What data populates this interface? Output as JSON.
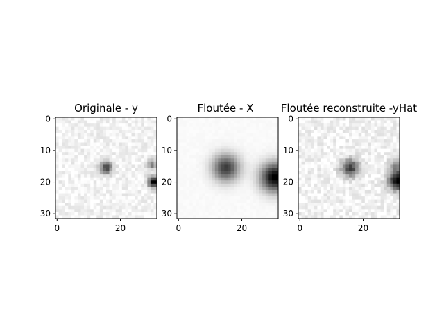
{
  "figure": {
    "background": "#ffffff",
    "colormap": "gray_r",
    "image_grid_size": 32,
    "panels": [
      {
        "id": "originale",
        "title": "Originale - y",
        "x_ticks": [
          0,
          20
        ],
        "y_ticks": [
          0,
          10,
          20,
          30
        ],
        "blobs": [
          {
            "cx": 15.5,
            "cy": 15.5,
            "sigma": 1.4,
            "amp": 0.7
          },
          {
            "cx": 30.5,
            "cy": 20.0,
            "sigma": 1.2,
            "amp": 1.0
          },
          {
            "cx": 30.0,
            "cy": 14.5,
            "sigma": 1.1,
            "amp": 0.45
          }
        ],
        "base_level": 0.05,
        "noise_amp": 0.07
      },
      {
        "id": "floutee",
        "title": "Floutée - X",
        "x_ticks": [
          0,
          20
        ],
        "y_ticks": [
          0,
          10,
          20,
          30
        ],
        "blobs": [
          {
            "cx": 15.0,
            "cy": 15.5,
            "sigma": 3.0,
            "amp": 0.75
          },
          {
            "cx": 30.5,
            "cy": 18.5,
            "sigma": 3.2,
            "amp": 1.0
          }
        ],
        "base_level": 0.02,
        "noise_amp": 0.01
      },
      {
        "id": "reconstruite",
        "title": "Floutée reconstruite -yHat",
        "x_ticks": [
          0,
          20
        ],
        "y_ticks": [
          0,
          10,
          20,
          30
        ],
        "blobs": [
          {
            "cx": 16.0,
            "cy": 15.5,
            "sigma": 2.0,
            "amp": 0.7
          },
          {
            "cx": 31.0,
            "cy": 19.5,
            "sigma": 2.1,
            "amp": 1.0
          },
          {
            "cx": 30.5,
            "cy": 14.5,
            "sigma": 1.5,
            "amp": 0.35
          }
        ],
        "base_level": 0.05,
        "noise_amp": 0.08
      }
    ]
  }
}
